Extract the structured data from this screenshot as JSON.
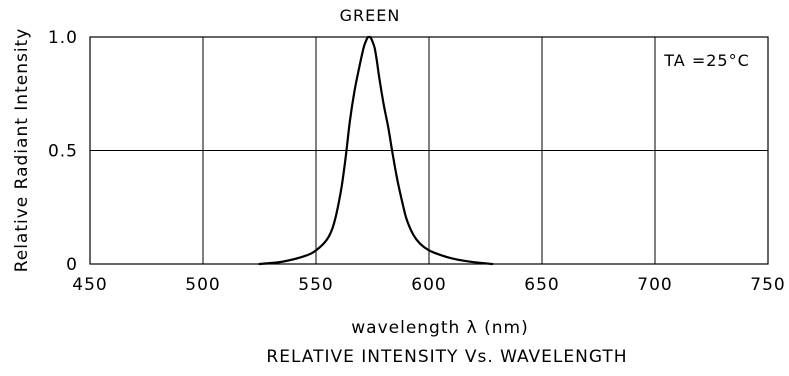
{
  "chart_data": {
    "type": "line",
    "title": "RELATIVE INTENSITY Vs. WAVELENGTH",
    "subtitle": "GREEN",
    "xlabel": "wavelength λ (nm)",
    "ylabel": "Relative Radiant Intensity",
    "annotation": "TA =25°C",
    "xlim": [
      450,
      750
    ],
    "ylim": [
      0,
      1.0
    ],
    "x_ticks": [
      450,
      500,
      550,
      600,
      650,
      700,
      750
    ],
    "x_tick_labels": [
      "450",
      "500",
      "550",
      "600",
      "650",
      "700",
      "750"
    ],
    "y_ticks": [
      0,
      0.5,
      1.0
    ],
    "y_tick_labels": [
      "0",
      "0.5",
      "1.0"
    ],
    "grid": true,
    "series": [
      {
        "color": "#000000",
        "x": [
          525,
          535,
          545,
          550,
          555,
          558,
          561,
          563,
          565,
          567,
          569,
          571,
          572,
          573,
          574,
          575,
          576,
          577,
          578,
          580,
          582,
          584,
          586,
          588,
          590,
          593,
          596,
          600,
          605,
          610,
          615,
          620,
          628
        ],
        "y": [
          0.0,
          0.01,
          0.035,
          0.06,
          0.11,
          0.18,
          0.32,
          0.46,
          0.63,
          0.76,
          0.86,
          0.95,
          0.98,
          1.0,
          1.0,
          0.98,
          0.95,
          0.89,
          0.82,
          0.7,
          0.6,
          0.48,
          0.37,
          0.28,
          0.2,
          0.13,
          0.09,
          0.06,
          0.04,
          0.025,
          0.015,
          0.008,
          0.0
        ]
      }
    ]
  }
}
